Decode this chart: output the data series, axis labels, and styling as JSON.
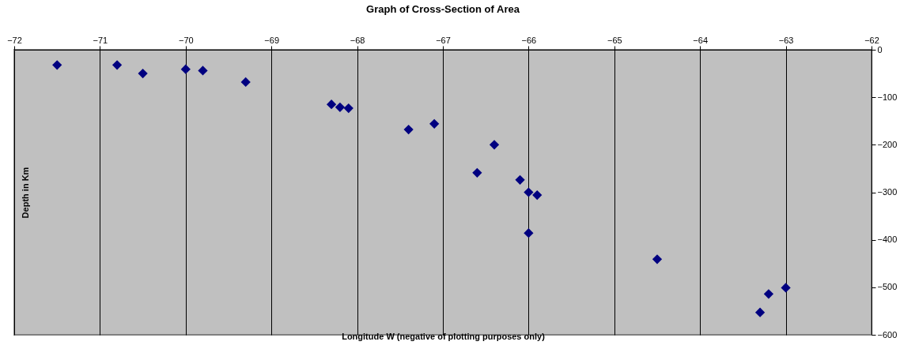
{
  "chart_data": {
    "type": "scatter",
    "title": "Graph of Cross-Section of Area",
    "xlabel": "Longitude W (negative of plotting purposes only)",
    "ylabel": "Depth in Km",
    "x": [
      -71.5,
      -70.8,
      -70.5,
      -70.0,
      -69.8,
      -69.3,
      -68.3,
      -68.2,
      -68.1,
      -67.4,
      -67.1,
      -66.4,
      -66.6,
      -66.1,
      -66.0,
      -65.9,
      -66.0,
      -64.5,
      -63.3,
      -63.2,
      -63.0
    ],
    "series": [
      {
        "color": "#000080",
        "values": [
          -32,
          -32,
          -50,
          -41,
          -44,
          -68,
          -115,
          -121,
          -123,
          -168,
          -156,
          -200,
          -259,
          -274,
          -300,
          -306,
          -386,
          -441,
          -553,
          -514,
          -501
        ]
      }
    ],
    "xlim": [
      -72,
      -62
    ],
    "xticks": [
      -72,
      -71,
      -70,
      -69,
      -68,
      -67,
      -66,
      -65,
      -64,
      -63,
      -62
    ],
    "ylim": [
      -600,
      0
    ],
    "yticks": [
      -600,
      -500,
      -400,
      -300,
      -200,
      -100,
      0
    ],
    "grid": "x",
    "marker": "diamond",
    "legend": false
  }
}
